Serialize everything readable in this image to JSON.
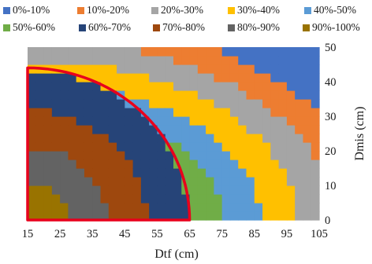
{
  "chart_data": {
    "type": "heatmap",
    "subtype": "filled-contour",
    "xlabel": "Dtf (cm)",
    "ylabel": "Dmis (cm)",
    "xlim": [
      15,
      105
    ],
    "ylim": [
      0,
      50
    ],
    "x_ticks": [
      "15",
      "25",
      "35",
      "45",
      "55",
      "65",
      "75",
      "85",
      "95",
      "105"
    ],
    "y_ticks": [
      "0",
      "10",
      "20",
      "30",
      "40",
      "50"
    ],
    "legend_position": "top",
    "legend": [
      {
        "label": "0%-10%",
        "color": "#4472c4"
      },
      {
        "label": "10%-20%",
        "color": "#ed7d31"
      },
      {
        "label": "20%-30%",
        "color": "#a5a5a5"
      },
      {
        "label": "30%-40%",
        "color": "#ffc000"
      },
      {
        "label": "40%-50%",
        "color": "#5b9bd5"
      },
      {
        "label": "50%-60%",
        "color": "#70ad47"
      },
      {
        "label": "60%-70%",
        "color": "#264478"
      },
      {
        "label": "70%-80%",
        "color": "#9e480e"
      },
      {
        "label": "80%-90%",
        "color": "#636363"
      },
      {
        "label": "90%-100%",
        "color": "#997300"
      }
    ],
    "highlight_region": {
      "x": [
        15,
        65
      ],
      "y": [
        0,
        44
      ],
      "color": "#e8001c"
    }
  }
}
